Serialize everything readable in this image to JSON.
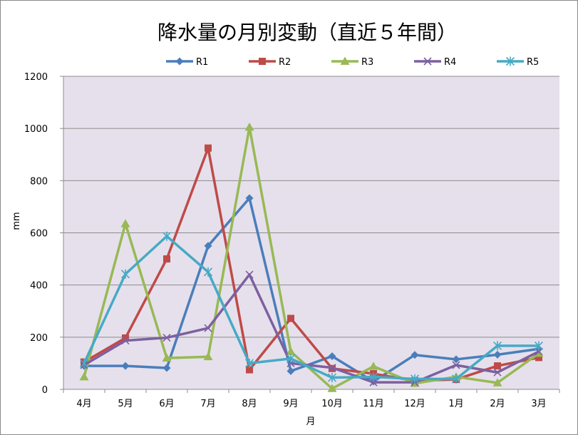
{
  "chart_data": {
    "type": "line",
    "title": "降水量の月別変動（直近５年間）",
    "xlabel": "月",
    "ylabel": "mm",
    "ylim": [
      0,
      1200
    ],
    "y_ticks": [
      0,
      200,
      400,
      600,
      800,
      1000,
      1200
    ],
    "categories": [
      "4月",
      "5月",
      "6月",
      "7月",
      "8月",
      "9月",
      "10月",
      "11月",
      "12月",
      "1月",
      "2月",
      "3月"
    ],
    "grid": true,
    "legend_position": "top",
    "plot_background": "#E6E0EC",
    "series": [
      {
        "name": "R1",
        "color": "#4A7EBB",
        "marker": "diamond",
        "values": [
          90,
          90,
          82,
          550,
          733,
          70,
          127,
          30,
          132,
          115,
          133,
          155
        ]
      },
      {
        "name": "R2",
        "color": "#BE4B48",
        "marker": "square",
        "values": [
          105,
          197,
          500,
          925,
          75,
          272,
          80,
          60,
          33,
          38,
          90,
          122
        ]
      },
      {
        "name": "R3",
        "color": "#98B954",
        "marker": "triangle",
        "values": [
          48,
          635,
          120,
          125,
          1005,
          145,
          3,
          88,
          23,
          48,
          25,
          138
        ]
      },
      {
        "name": "R4",
        "color": "#7D60A0",
        "marker": "x",
        "values": [
          93,
          187,
          198,
          235,
          440,
          100,
          83,
          27,
          27,
          93,
          65,
          145
        ]
      },
      {
        "name": "R5",
        "color": "#46AAC5",
        "marker": "star",
        "values": [
          100,
          442,
          587,
          450,
          100,
          118,
          45,
          48,
          40,
          40,
          167,
          167
        ]
      }
    ]
  }
}
